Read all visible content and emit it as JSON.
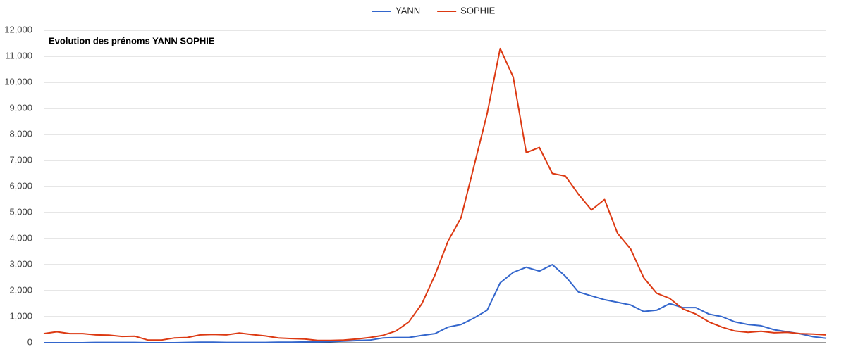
{
  "chart_data": {
    "type": "line",
    "title": "Evolution des prénoms YANN SOPHIE",
    "legend": "top",
    "grid": true,
    "ylim": [
      0,
      12000
    ],
    "yticks": [
      0,
      {
        "value": 1000,
        "label": "1,000"
      },
      {
        "value": 2000,
        "label": "2,000"
      },
      {
        "value": 3000,
        "label": "3,000"
      },
      {
        "value": 4000,
        "label": "4,000"
      },
      {
        "value": 5000,
        "label": "5,000"
      },
      {
        "value": 6000,
        "label": "6,000"
      },
      {
        "value": 7000,
        "label": "7,000"
      },
      {
        "value": 8000,
        "label": "8,000"
      },
      {
        "value": 9000,
        "label": "9,000"
      },
      {
        "value": 10000,
        "label": "10,000"
      },
      {
        "value": 11000,
        "label": "11,000"
      },
      {
        "value": 12000,
        "label": "12,000"
      }
    ],
    "series": [
      {
        "name": "YANN",
        "color": "#3366cc",
        "values": [
          0,
          0,
          0,
          0,
          10,
          10,
          10,
          10,
          0,
          0,
          0,
          10,
          20,
          20,
          10,
          10,
          10,
          10,
          20,
          20,
          30,
          30,
          40,
          60,
          80,
          100,
          180,
          200,
          200,
          280,
          350,
          600,
          700,
          950,
          1250,
          2300,
          2700,
          2900,
          2750,
          3000,
          2550,
          1950,
          1800,
          1650,
          1550,
          1450,
          1200,
          1250,
          1500,
          1350,
          1350,
          1100,
          1000,
          800,
          700,
          650,
          500,
          420,
          340,
          230,
          170
        ]
      },
      {
        "name": "SOPHIE",
        "color": "#dc3912",
        "values": [
          350,
          420,
          350,
          350,
          300,
          290,
          240,
          250,
          100,
          100,
          180,
          200,
          300,
          320,
          300,
          370,
          310,
          260,
          180,
          160,
          140,
          90,
          90,
          100,
          140,
          200,
          280,
          450,
          800,
          1500,
          2600,
          3900,
          4800,
          6800,
          8800,
          11300,
          10200,
          7300,
          7500,
          6500,
          6400,
          5700,
          5100,
          5500,
          4200,
          3600,
          2500,
          1900,
          1700,
          1300,
          1100,
          800,
          600,
          450,
          400,
          440,
          380,
          400,
          350,
          330,
          300
        ]
      }
    ]
  }
}
